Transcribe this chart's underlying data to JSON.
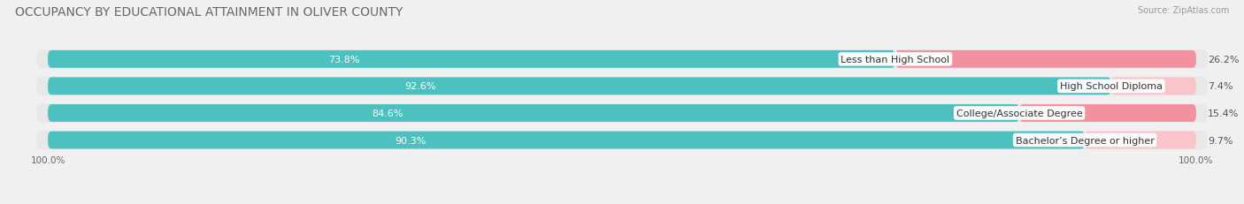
{
  "title": "OCCUPANCY BY EDUCATIONAL ATTAINMENT IN OLIVER COUNTY",
  "source": "Source: ZipAtlas.com",
  "categories": [
    "Less than High School",
    "High School Diploma",
    "College/Associate Degree",
    "Bachelor’s Degree or higher"
  ],
  "owner_values": [
    73.8,
    92.6,
    84.6,
    90.3
  ],
  "renter_values": [
    26.2,
    7.4,
    15.4,
    9.7
  ],
  "owner_color": "#4dc0c0",
  "renter_color": "#f4919e",
  "renter_color_light": "#f9c4ca",
  "row_bg_color": "#e8e8e8",
  "background_color": "#f0f0f0",
  "title_fontsize": 10,
  "label_fontsize": 8,
  "value_fontsize": 8,
  "source_fontsize": 7,
  "legend_fontsize": 8,
  "bar_height": 0.65,
  "axis_label_left": "100.0%",
  "axis_label_right": "100.0%"
}
